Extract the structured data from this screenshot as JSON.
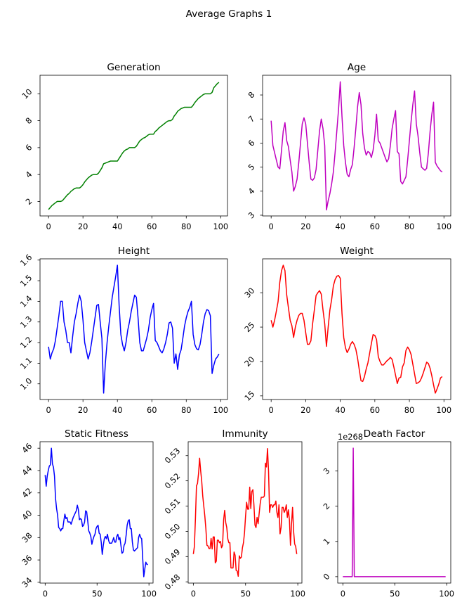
{
  "figure": {
    "title": "Average Graphs 1"
  },
  "chart_data": [
    {
      "type": "line",
      "title": "Generation",
      "color": "#008000",
      "xlim": [
        -4.95,
        103.95
      ],
      "ylim": [
        0.925,
        11.375
      ],
      "grid": false,
      "xticks": [
        "0",
        "20",
        "40",
        "60",
        "80",
        "100"
      ],
      "yticks": [
        "2",
        "4",
        "6",
        "8",
        "10"
      ],
      "x_start": 0,
      "values": [
        1.4,
        1.55,
        1.7,
        1.8,
        1.9,
        2.0,
        2.0,
        2.0,
        2.05,
        2.2,
        2.35,
        2.5,
        2.6,
        2.75,
        2.85,
        2.95,
        3.0,
        3.0,
        3.0,
        3.1,
        3.25,
        3.45,
        3.6,
        3.75,
        3.85,
        3.95,
        4.0,
        4.0,
        4.0,
        4.1,
        4.3,
        4.5,
        4.8,
        4.85,
        4.9,
        4.95,
        5.0,
        5.0,
        5.0,
        5.0,
        5.0,
        5.2,
        5.4,
        5.6,
        5.75,
        5.85,
        5.9,
        6.0,
        6.0,
        6.0,
        6.0,
        6.1,
        6.3,
        6.5,
        6.6,
        6.7,
        6.75,
        6.85,
        6.95,
        7.0,
        7.0,
        7.0,
        7.2,
        7.3,
        7.45,
        7.55,
        7.65,
        7.75,
        7.85,
        7.95,
        8.0,
        8.0,
        8.1,
        8.35,
        8.5,
        8.7,
        8.8,
        8.9,
        8.95,
        9.0,
        9.0,
        9.0,
        9.0,
        9.0,
        9.15,
        9.35,
        9.5,
        9.65,
        9.75,
        9.85,
        9.95,
        10.0,
        10.0,
        10.0,
        10.0,
        10.1,
        10.45,
        10.6,
        10.75,
        10.85
      ]
    },
    {
      "type": "line",
      "title": "Age",
      "color": "#bf00bf",
      "xlim": [
        -4.95,
        103.95
      ],
      "ylim": [
        2.97,
        8.82
      ],
      "grid": false,
      "xticks": [
        "0",
        "20",
        "40",
        "60",
        "80",
        "100"
      ],
      "yticks": [
        "3",
        "4",
        "5",
        "6",
        "7",
        "8"
      ],
      "x_start": 0,
      "values": [
        6.93,
        5.9,
        5.6,
        5.3,
        5.0,
        4.93,
        5.7,
        6.5,
        6.85,
        6.1,
        5.85,
        5.3,
        4.8,
        4.0,
        4.2,
        4.5,
        5.2,
        6.0,
        6.8,
        7.05,
        6.8,
        6.0,
        5.2,
        4.5,
        4.45,
        4.55,
        4.9,
        5.7,
        6.5,
        7.0,
        6.6,
        5.9,
        3.22,
        3.6,
        3.9,
        4.3,
        4.8,
        5.6,
        6.5,
        7.4,
        8.55,
        7.1,
        5.9,
        5.2,
        4.7,
        4.6,
        4.9,
        5.1,
        5.8,
        6.6,
        7.5,
        8.1,
        7.6,
        6.4,
        5.8,
        5.5,
        5.65,
        5.6,
        5.4,
        5.7,
        6.3,
        7.2,
        6.1,
        6.0,
        5.8,
        5.6,
        5.4,
        5.22,
        5.35,
        5.9,
        6.6,
        7.0,
        7.35,
        5.65,
        5.55,
        4.4,
        4.3,
        4.45,
        4.6,
        5.3,
        6.1,
        6.9,
        7.6,
        8.17,
        6.8,
        6.3,
        5.6,
        5.0,
        4.93,
        4.87,
        4.95,
        5.6,
        6.5,
        7.2,
        7.7,
        5.2,
        5.05,
        4.95,
        4.85,
        4.8
      ]
    },
    {
      "type": "line",
      "title": "Height",
      "color": "#0000ff",
      "xlim": [
        -4.95,
        103.95
      ],
      "ylim": [
        0.924,
        1.606
      ],
      "grid": false,
      "xticks": [
        "0",
        "20",
        "40",
        "60",
        "80",
        "100"
      ],
      "yticks": [
        "1.0",
        "1.1",
        "1.2",
        "1.3",
        "1.4",
        "1.5",
        "1.6"
      ],
      "x_start": 0,
      "values": [
        1.18,
        1.12,
        1.15,
        1.17,
        1.21,
        1.27,
        1.33,
        1.4,
        1.4,
        1.3,
        1.26,
        1.2,
        1.2,
        1.15,
        1.23,
        1.3,
        1.34,
        1.39,
        1.43,
        1.4,
        1.31,
        1.2,
        1.16,
        1.12,
        1.15,
        1.2,
        1.26,
        1.32,
        1.38,
        1.385,
        1.3,
        1.22,
        0.955,
        1.1,
        1.2,
        1.28,
        1.35,
        1.42,
        1.47,
        1.52,
        1.575,
        1.38,
        1.24,
        1.19,
        1.16,
        1.2,
        1.26,
        1.3,
        1.35,
        1.39,
        1.43,
        1.42,
        1.32,
        1.2,
        1.16,
        1.16,
        1.19,
        1.22,
        1.26,
        1.32,
        1.36,
        1.39,
        1.21,
        1.2,
        1.18,
        1.16,
        1.15,
        1.17,
        1.2,
        1.24,
        1.295,
        1.3,
        1.27,
        1.1,
        1.145,
        1.07,
        1.14,
        1.165,
        1.22,
        1.28,
        1.32,
        1.35,
        1.37,
        1.4,
        1.24,
        1.19,
        1.17,
        1.165,
        1.19,
        1.24,
        1.3,
        1.34,
        1.36,
        1.355,
        1.33,
        1.05,
        1.09,
        1.12,
        1.13,
        1.145
      ]
    },
    {
      "type": "line",
      "title": "Weight",
      "color": "#ff0000",
      "xlim": [
        -4.95,
        103.95
      ],
      "ylim": [
        14.47,
        34.93
      ],
      "grid": false,
      "xticks": [
        "0",
        "20",
        "40",
        "60",
        "80",
        "100"
      ],
      "yticks": [
        "15",
        "20",
        "25",
        "30"
      ],
      "x_start": 0,
      "values": [
        26,
        25,
        26,
        27.3,
        28.7,
        31.5,
        33.2,
        34,
        33.2,
        29.7,
        27.8,
        26,
        25.2,
        23.5,
        25,
        26,
        26.7,
        27,
        27,
        26,
        24.2,
        22.5,
        22.5,
        23,
        25.5,
        27.5,
        29.6,
        30,
        30.3,
        29.8,
        27.5,
        25.5,
        22.2,
        25,
        27.5,
        29,
        31,
        31.9,
        32.4,
        32.5,
        32.1,
        27,
        23.5,
        22,
        21.3,
        21.8,
        22.5,
        22.9,
        22.5,
        21.8,
        20.5,
        18.8,
        17.2,
        17.1,
        17.8,
        18.9,
        19.8,
        21.2,
        22.6,
        23.9,
        23.8,
        23.2,
        20.7,
        20,
        19.5,
        19.5,
        19.8,
        20.1,
        20.3,
        20.6,
        20.3,
        19.2,
        18,
        16.8,
        17.6,
        17.7,
        19.2,
        19.8,
        21.6,
        22.1,
        21.7,
        21,
        19.6,
        18.2,
        16.8,
        16.9,
        17.1,
        17.6,
        18.3,
        19.1,
        19.9,
        19.7,
        19,
        17.9,
        16.6,
        15.4,
        16,
        16.7,
        17.6,
        17.8
      ]
    },
    {
      "type": "line",
      "title": "Static Fitness",
      "color": "#0000ff",
      "xlim": [
        -4.95,
        103.95
      ],
      "ylim": [
        33.93,
        46.58
      ],
      "grid": false,
      "xticks": [
        "0",
        "50",
        "100"
      ],
      "yticks": [
        "34",
        "36",
        "38",
        "40",
        "42",
        "44",
        "46"
      ],
      "x_start": 0,
      "values": [
        43.6,
        42.6,
        43.5,
        44,
        44.4,
        44.5,
        46,
        44.6,
        44.3,
        43.5,
        41.5,
        40.6,
        40,
        38.9,
        38.8,
        38.6,
        38.8,
        38.8,
        39.5,
        40.1,
        39.7,
        39.8,
        39.4,
        39.4,
        39.4,
        39.2,
        39.5,
        39.8,
        40,
        40.2,
        40.4,
        40.9,
        40.5,
        39.6,
        39.7,
        39.6,
        39,
        39.1,
        39.4,
        40.4,
        40.3,
        39.5,
        38.6,
        38.4,
        38.1,
        37.4,
        37.8,
        38.1,
        38.3,
        38.8,
        39,
        39.1,
        38.4,
        38.3,
        37.6,
        36.5,
        37.3,
        37.9,
        38.1,
        37.9,
        38.3,
        37.8,
        37.5,
        37.5,
        37.5,
        37.7,
        38,
        37.6,
        37.6,
        38.1,
        38.3,
        37.8,
        38,
        37.3,
        36.6,
        36.7,
        37.3,
        37.5,
        38.2,
        39.1,
        39.5,
        39.6,
        38.8,
        38.8,
        37.6,
        36.9,
        36.8,
        36.9,
        37,
        37.1,
        38,
        38.3,
        38,
        37.9,
        36.1,
        34.5,
        35.2,
        35.8,
        35.6,
        35.6
      ]
    },
    {
      "type": "line",
      "title": "Immunity",
      "color": "#ff0000",
      "xlim": [
        -4.95,
        103.95
      ],
      "ylim": [
        0.4795,
        0.5355
      ],
      "grid": false,
      "xticks": [
        "0",
        "50",
        "100"
      ],
      "yticks": [
        "0.48",
        "0.49",
        "0.50",
        "0.51",
        "0.52",
        "0.53"
      ],
      "x_start": 0,
      "values": [
        0.491,
        0.494,
        0.505,
        0.518,
        0.519,
        0.523,
        0.529,
        0.524,
        0.52,
        0.514,
        0.51,
        0.506,
        0.501,
        0.4945,
        0.4942,
        0.4932,
        0.4932,
        0.4972,
        0.493,
        0.4978,
        0.4978,
        0.4875,
        0.4882,
        0.4965,
        0.4965,
        0.4955,
        0.496,
        0.4935,
        0.4945,
        0.5045,
        0.5083,
        0.5035,
        0.5015,
        0.497,
        0.4955,
        0.4955,
        0.4855,
        0.4855,
        0.4855,
        0.4918,
        0.4905,
        0.4845,
        0.4843,
        0.4822,
        0.4903,
        0.4893,
        0.4898,
        0.4935,
        0.4955,
        0.4995,
        0.506,
        0.5115,
        0.5088,
        0.5088,
        0.5175,
        0.509,
        0.5158,
        0.5165,
        0.5105,
        0.5025,
        0.5015,
        0.5055,
        0.503,
        0.507,
        0.511,
        0.5135,
        0.5135,
        0.5135,
        0.514,
        0.527,
        0.5255,
        0.5328,
        0.524,
        0.5075,
        0.5105,
        0.5105,
        0.5095,
        0.5105,
        0.5105,
        0.512,
        0.5075,
        0.5055,
        0.5105,
        0.499,
        0.5015,
        0.5095,
        0.5095,
        0.5075,
        0.5085,
        0.5105,
        0.5055,
        0.5085,
        0.5045,
        0.4945,
        0.503,
        0.5095,
        0.5,
        0.495,
        0.494,
        0.491
      ]
    },
    {
      "type": "line",
      "title": "Death Factor",
      "color": "#bf00bf",
      "xlim": [
        -4.95,
        103.95
      ],
      "ylim": [
        -1.825e+267,
        3.8325e+268
      ],
      "grid": false,
      "offset_text": "1e268",
      "y_scale": 1e+268,
      "xticks": [
        "0",
        "50",
        "100"
      ],
      "yticks": [
        "0",
        "1",
        "2",
        "3"
      ],
      "x_start": 0,
      "values": [
        0,
        0,
        0,
        0,
        0,
        0,
        0,
        0,
        0,
        0,
        3.65e+268,
        0,
        0,
        0,
        0,
        0,
        0,
        0,
        0,
        0,
        0,
        0,
        0,
        0,
        0,
        0,
        0,
        0,
        0,
        0,
        0,
        0,
        0,
        0,
        0,
        0,
        0,
        0,
        0,
        0,
        0,
        0,
        0,
        0,
        0,
        0,
        0,
        0,
        0,
        0,
        0,
        0,
        0,
        0,
        0,
        0,
        0,
        0,
        0,
        0,
        0,
        0,
        0,
        0,
        0,
        0,
        0,
        0,
        0,
        0,
        0,
        0,
        0,
        0,
        0,
        0,
        0,
        0,
        0,
        0,
        0,
        0,
        0,
        0,
        0,
        0,
        0,
        0,
        0,
        0,
        0,
        0,
        0,
        0,
        0,
        0,
        0,
        0,
        0,
        0
      ]
    }
  ]
}
